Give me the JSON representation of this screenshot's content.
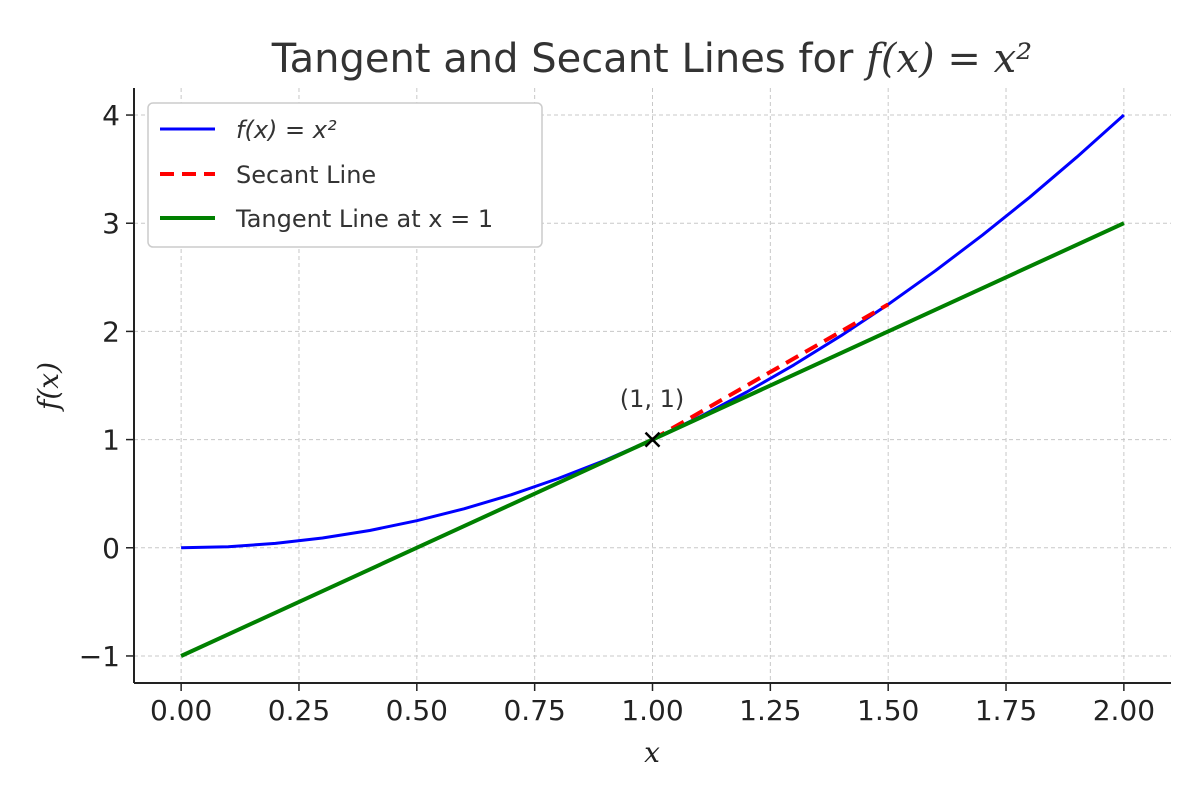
{
  "chart_data": {
    "type": "line",
    "title_prefix": "Tangent and Secant Lines for ",
    "title_math": "f(x) = x²",
    "xlabel": "x",
    "ylabel": "f(x)",
    "xlim": [
      -0.1,
      2.1
    ],
    "ylim": [
      -1.25,
      4.25
    ],
    "xticks": [
      0.0,
      0.25,
      0.5,
      0.75,
      1.0,
      1.25,
      1.5,
      1.75,
      2.0
    ],
    "xtick_labels": [
      "0.00",
      "0.25",
      "0.50",
      "0.75",
      "1.00",
      "1.25",
      "1.50",
      "1.75",
      "2.00"
    ],
    "yticks": [
      -1,
      0,
      1,
      2,
      3,
      4
    ],
    "ytick_labels": [
      "−1",
      "0",
      "1",
      "2",
      "3",
      "4"
    ],
    "grid": true,
    "legend_position": "top-left",
    "series": [
      {
        "name": "f(x) = x²",
        "style": "solid",
        "color": "#0000ff",
        "x": [
          0,
          0.1,
          0.2,
          0.3,
          0.4,
          0.5,
          0.6,
          0.7,
          0.8,
          0.9,
          1.0,
          1.1,
          1.2,
          1.3,
          1.4,
          1.5,
          1.6,
          1.7,
          1.8,
          1.9,
          2.0
        ],
        "y": [
          0,
          0.01,
          0.04,
          0.09,
          0.16,
          0.25,
          0.36,
          0.49,
          0.64,
          0.81,
          1.0,
          1.21,
          1.44,
          1.69,
          1.96,
          2.25,
          2.56,
          2.89,
          3.24,
          3.61,
          4.0
        ]
      },
      {
        "name": "Secant Line",
        "style": "dashed",
        "color": "#ff0000",
        "x": [
          1.0,
          1.5
        ],
        "y": [
          1.0,
          2.25
        ]
      },
      {
        "name": "Tangent Line at x = 1",
        "style": "solid",
        "color": "#008000",
        "x": [
          0.0,
          2.0
        ],
        "y": [
          -1.0,
          3.0
        ]
      }
    ],
    "annotation": {
      "text": "(1, 1)",
      "x": 1.0,
      "y": 1.0
    },
    "legend": [
      {
        "label": "f(x) = x²"
      },
      {
        "label": "Secant Line"
      },
      {
        "label": "Tangent Line at x = 1"
      }
    ]
  }
}
